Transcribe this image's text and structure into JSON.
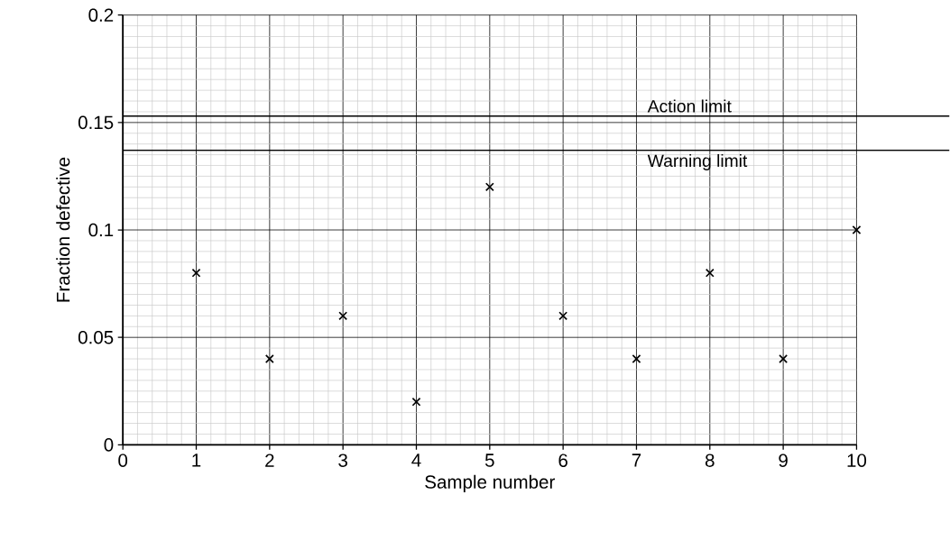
{
  "chart_data": {
    "type": "scatter",
    "xlabel": "Sample number",
    "ylabel": "Fraction defective",
    "x": [
      1,
      2,
      3,
      4,
      5,
      6,
      7,
      8,
      9,
      10
    ],
    "values": [
      0.08,
      0.04,
      0.06,
      0.02,
      0.12,
      0.06,
      0.04,
      0.08,
      0.04,
      0.1
    ],
    "color": "#000000",
    "marker": "cross",
    "grid": true,
    "xlim": [
      0,
      10
    ],
    "ylim": [
      0,
      0.2
    ],
    "xticks": [
      0,
      1,
      2,
      3,
      4,
      5,
      6,
      7,
      8,
      9,
      10
    ],
    "yticks": [
      0,
      0.05,
      0.1,
      0.15,
      0.2
    ],
    "ref_lines": [
      {
        "axis": "y",
        "value": 0.153,
        "label": "Action limit",
        "color": "#000000"
      },
      {
        "axis": "y",
        "value": 0.137,
        "label": "Warning limit",
        "color": "#000000"
      }
    ]
  }
}
